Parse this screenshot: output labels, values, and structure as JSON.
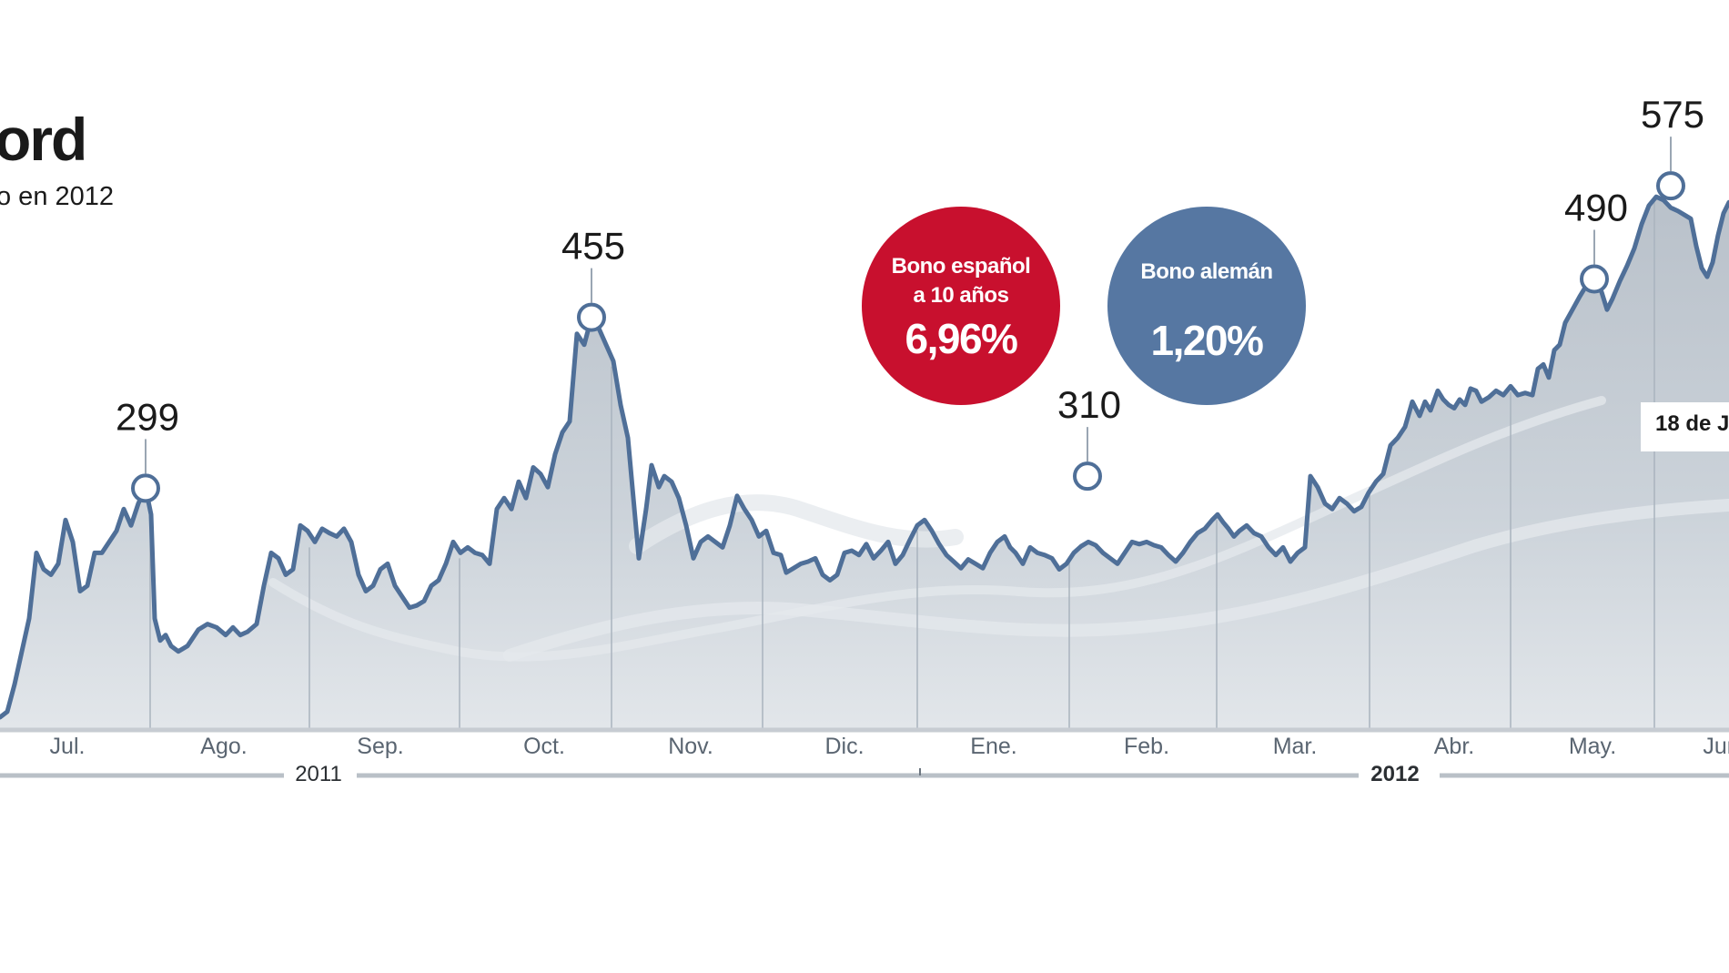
{
  "title": "ord",
  "subtitle": "o en 2012",
  "bubbles": {
    "es": {
      "line1": "Bono español",
      "line2": "a 10 años",
      "value": "6,96%"
    },
    "de": {
      "line1": "Bono alemán",
      "value": "1,20%"
    }
  },
  "callout": "18 de J",
  "colors": {
    "line": "#4f6f98",
    "area": "#c9cfd6",
    "es_bubble": "#c8102e",
    "de_bubble": "#5677a2"
  },
  "chart_data": {
    "type": "area",
    "title": "ord",
    "ylim": [
      80,
      620
    ],
    "x_months": [
      "Jul.",
      "Ago.",
      "Sep.",
      "Oct.",
      "Nov.",
      "Dic.",
      "Ene.",
      "Feb.",
      "Mar.",
      "Abr.",
      "May.",
      "Jun."
    ],
    "year_labels": [
      "2011",
      "2012"
    ],
    "series": [
      {
        "values": [
          [
            0,
            90
          ],
          [
            8,
            95
          ],
          [
            16,
            120
          ],
          [
            24,
            150
          ],
          [
            32,
            180
          ],
          [
            40,
            240
          ],
          [
            48,
            225
          ],
          [
            56,
            220
          ],
          [
            64,
            230
          ],
          [
            72,
            270
          ],
          [
            80,
            250
          ],
          [
            88,
            205
          ],
          [
            96,
            210
          ],
          [
            104,
            240
          ],
          [
            112,
            240
          ],
          [
            120,
            250
          ],
          [
            128,
            260
          ],
          [
            136,
            280
          ],
          [
            144,
            265
          ],
          [
            152,
            285
          ],
          [
            160,
            299
          ],
          [
            166,
            275
          ],
          [
            170,
            180
          ],
          [
            176,
            160
          ],
          [
            182,
            165
          ],
          [
            188,
            155
          ],
          [
            196,
            150
          ],
          [
            206,
            155
          ],
          [
            218,
            170
          ],
          [
            228,
            175
          ],
          [
            238,
            172
          ],
          [
            248,
            165
          ],
          [
            256,
            172
          ],
          [
            264,
            165
          ],
          [
            272,
            168
          ],
          [
            282,
            175
          ],
          [
            290,
            210
          ],
          [
            298,
            240
          ],
          [
            306,
            235
          ],
          [
            314,
            220
          ],
          [
            322,
            225
          ],
          [
            330,
            265
          ],
          [
            338,
            260
          ],
          [
            346,
            250
          ],
          [
            354,
            262
          ],
          [
            362,
            258
          ],
          [
            370,
            255
          ],
          [
            378,
            262
          ],
          [
            386,
            250
          ],
          [
            394,
            220
          ],
          [
            402,
            205
          ],
          [
            410,
            210
          ],
          [
            418,
            225
          ],
          [
            426,
            230
          ],
          [
            434,
            210
          ],
          [
            442,
            200
          ],
          [
            450,
            190
          ],
          [
            458,
            192
          ],
          [
            466,
            196
          ],
          [
            474,
            210
          ],
          [
            482,
            215
          ],
          [
            490,
            230
          ],
          [
            498,
            250
          ],
          [
            506,
            240
          ],
          [
            514,
            245
          ],
          [
            522,
            240
          ],
          [
            530,
            238
          ],
          [
            538,
            230
          ],
          [
            546,
            280
          ],
          [
            554,
            290
          ],
          [
            562,
            280
          ],
          [
            570,
            305
          ],
          [
            578,
            290
          ],
          [
            586,
            318
          ],
          [
            594,
            312
          ],
          [
            602,
            300
          ],
          [
            610,
            330
          ],
          [
            618,
            350
          ],
          [
            626,
            360
          ],
          [
            634,
            440
          ],
          [
            642,
            430
          ],
          [
            650,
            455
          ],
          [
            658,
            445
          ],
          [
            666,
            430
          ],
          [
            674,
            415
          ],
          [
            682,
            375
          ],
          [
            690,
            345
          ],
          [
            696,
            290
          ],
          [
            702,
            235
          ],
          [
            710,
            280
          ],
          [
            716,
            320
          ],
          [
            724,
            300
          ],
          [
            730,
            310
          ],
          [
            738,
            305
          ],
          [
            746,
            290
          ],
          [
            754,
            265
          ],
          [
            762,
            235
          ],
          [
            770,
            250
          ],
          [
            778,
            255
          ],
          [
            786,
            250
          ],
          [
            794,
            245
          ],
          [
            802,
            265
          ],
          [
            810,
            292
          ],
          [
            818,
            280
          ],
          [
            826,
            270
          ],
          [
            834,
            255
          ],
          [
            842,
            260
          ],
          [
            850,
            240
          ],
          [
            858,
            238
          ],
          [
            864,
            222
          ],
          [
            872,
            226
          ],
          [
            880,
            230
          ],
          [
            888,
            232
          ],
          [
            896,
            235
          ],
          [
            904,
            220
          ],
          [
            912,
            215
          ],
          [
            920,
            220
          ],
          [
            928,
            240
          ],
          [
            936,
            242
          ],
          [
            944,
            238
          ],
          [
            952,
            248
          ],
          [
            960,
            235
          ],
          [
            968,
            242
          ],
          [
            976,
            250
          ],
          [
            984,
            230
          ],
          [
            992,
            238
          ],
          [
            1000,
            252
          ],
          [
            1008,
            265
          ],
          [
            1016,
            270
          ],
          [
            1024,
            260
          ],
          [
            1032,
            248
          ],
          [
            1040,
            238
          ],
          [
            1048,
            232
          ],
          [
            1056,
            226
          ],
          [
            1064,
            234
          ],
          [
            1072,
            230
          ],
          [
            1080,
            226
          ],
          [
            1088,
            240
          ],
          [
            1096,
            250
          ],
          [
            1104,
            255
          ],
          [
            1110,
            245
          ],
          [
            1116,
            240
          ],
          [
            1124,
            230
          ],
          [
            1132,
            245
          ],
          [
            1140,
            240
          ],
          [
            1148,
            238
          ],
          [
            1156,
            235
          ],
          [
            1164,
            225
          ],
          [
            1172,
            230
          ],
          [
            1180,
            240
          ],
          [
            1188,
            246
          ],
          [
            1196,
            250
          ],
          [
            1204,
            247
          ],
          [
            1212,
            240
          ],
          [
            1220,
            235
          ],
          [
            1228,
            230
          ],
          [
            1236,
            240
          ],
          [
            1244,
            250
          ],
          [
            1252,
            248
          ],
          [
            1260,
            250
          ],
          [
            1268,
            247
          ],
          [
            1276,
            245
          ],
          [
            1284,
            238
          ],
          [
            1292,
            232
          ],
          [
            1300,
            240
          ],
          [
            1308,
            250
          ],
          [
            1316,
            258
          ],
          [
            1324,
            262
          ],
          [
            1332,
            270
          ],
          [
            1338,
            275
          ],
          [
            1344,
            268
          ],
          [
            1350,
            262
          ],
          [
            1356,
            255
          ],
          [
            1362,
            260
          ],
          [
            1370,
            265
          ],
          [
            1378,
            258
          ],
          [
            1386,
            255
          ],
          [
            1394,
            245
          ],
          [
            1402,
            238
          ],
          [
            1410,
            245
          ],
          [
            1418,
            232
          ],
          [
            1426,
            240
          ],
          [
            1434,
            245
          ],
          [
            1440,
            310
          ],
          [
            1448,
            300
          ],
          [
            1456,
            285
          ],
          [
            1464,
            280
          ],
          [
            1472,
            290
          ],
          [
            1480,
            285
          ],
          [
            1488,
            278
          ],
          [
            1496,
            282
          ],
          [
            1504,
            295
          ],
          [
            1512,
            305
          ],
          [
            1520,
            312
          ],
          [
            1528,
            338
          ],
          [
            1536,
            345
          ],
          [
            1544,
            355
          ],
          [
            1552,
            378
          ],
          [
            1560,
            365
          ],
          [
            1566,
            378
          ],
          [
            1572,
            370
          ],
          [
            1580,
            388
          ],
          [
            1586,
            380
          ],
          [
            1592,
            375
          ],
          [
            1598,
            372
          ],
          [
            1604,
            380
          ],
          [
            1610,
            375
          ],
          [
            1616,
            390
          ],
          [
            1622,
            388
          ],
          [
            1628,
            378
          ],
          [
            1636,
            382
          ],
          [
            1644,
            388
          ],
          [
            1652,
            384
          ],
          [
            1660,
            392
          ],
          [
            1668,
            384
          ],
          [
            1676,
            386
          ],
          [
            1684,
            384
          ],
          [
            1690,
            408
          ],
          [
            1696,
            412
          ],
          [
            1702,
            400
          ],
          [
            1708,
            425
          ],
          [
            1714,
            430
          ],
          [
            1720,
            450
          ],
          [
            1728,
            462
          ],
          [
            1736,
            474
          ],
          [
            1744,
            485
          ],
          [
            1752,
            490
          ],
          [
            1760,
            478
          ],
          [
            1766,
            462
          ],
          [
            1772,
            472
          ],
          [
            1780,
            488
          ],
          [
            1788,
            502
          ],
          [
            1796,
            518
          ],
          [
            1804,
            540
          ],
          [
            1812,
            557
          ],
          [
            1820,
            565
          ],
          [
            1828,
            562
          ],
          [
            1836,
            555
          ],
          [
            1844,
            552
          ],
          [
            1852,
            548
          ],
          [
            1858,
            545
          ],
          [
            1864,
            520
          ],
          [
            1870,
            500
          ],
          [
            1876,
            492
          ],
          [
            1882,
            505
          ],
          [
            1888,
            530
          ],
          [
            1894,
            550
          ],
          [
            1900,
            560
          ]
        ]
      }
    ],
    "annotations": [
      {
        "x": 160,
        "y": 299,
        "label": "299"
      },
      {
        "x": 650,
        "y": 455,
        "label": "455"
      },
      {
        "x": 1195,
        "y": 310,
        "label": "310"
      },
      {
        "x": 1752,
        "y": 490,
        "label": "490"
      },
      {
        "x": 1836,
        "y": 575,
        "label": "575"
      }
    ]
  }
}
